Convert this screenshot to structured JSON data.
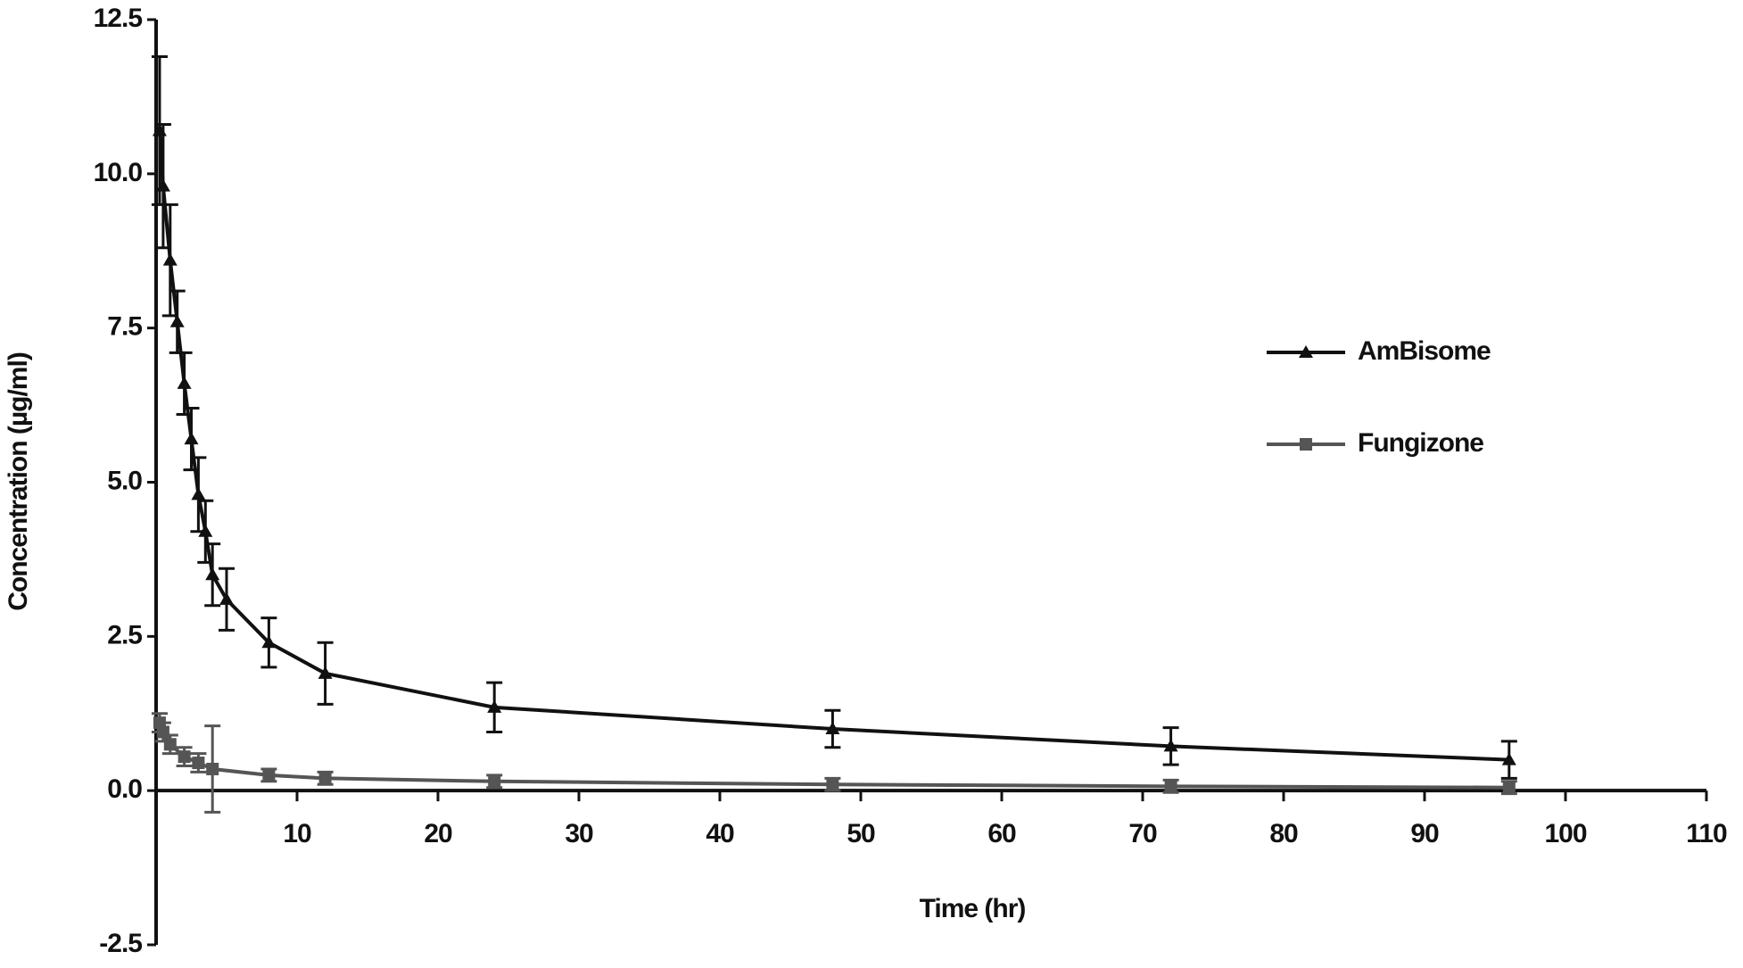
{
  "chart_data": {
    "type": "line",
    "xlabel": "Time (hr)",
    "ylabel": "Concentration (µg/ml)",
    "xlim": [
      0,
      110
    ],
    "xticks": [
      10,
      20,
      30,
      40,
      50,
      60,
      70,
      80,
      90,
      100,
      110
    ],
    "ylim": [
      -2.5,
      12.5
    ],
    "yticks": [
      -2.5,
      {
        "value": 0,
        "label": "0.0"
      },
      2.5,
      {
        "value": 5,
        "label": "5.0"
      },
      7.5,
      {
        "value": 10,
        "label": "10.0"
      },
      12.5
    ],
    "grid": false,
    "legend": "right",
    "series": [
      {
        "name": "AmBisome",
        "color": "#111111",
        "marker": "triangle",
        "x": [
          0.25,
          0.5,
          1,
          1.5,
          2,
          2.5,
          3,
          3.5,
          4,
          5,
          8,
          12,
          24,
          48,
          72,
          96
        ],
        "values": [
          10.7,
          9.8,
          8.6,
          7.6,
          6.6,
          5.7,
          4.8,
          4.2,
          3.5,
          3.1,
          2.4,
          1.9,
          1.35,
          1.0,
          0.72,
          0.5
        ],
        "errors": [
          1.2,
          1.0,
          0.9,
          0.5,
          0.5,
          0.5,
          0.6,
          0.5,
          0.5,
          0.5,
          0.4,
          0.5,
          0.4,
          0.3,
          0.3,
          0.3
        ]
      },
      {
        "name": "Fungizone",
        "color": "#555555",
        "marker": "square",
        "x": [
          0.25,
          0.5,
          1,
          2,
          3,
          4,
          8,
          12,
          24,
          48,
          72,
          96
        ],
        "values": [
          1.1,
          0.95,
          0.75,
          0.55,
          0.45,
          0.35,
          0.25,
          0.2,
          0.15,
          0.1,
          0.07,
          0.05
        ],
        "errors": [
          0.15,
          0.15,
          0.15,
          0.15,
          0.15,
          0.7,
          0.1,
          0.1,
          0.1,
          0.1,
          0.1,
          0.1
        ]
      }
    ]
  }
}
